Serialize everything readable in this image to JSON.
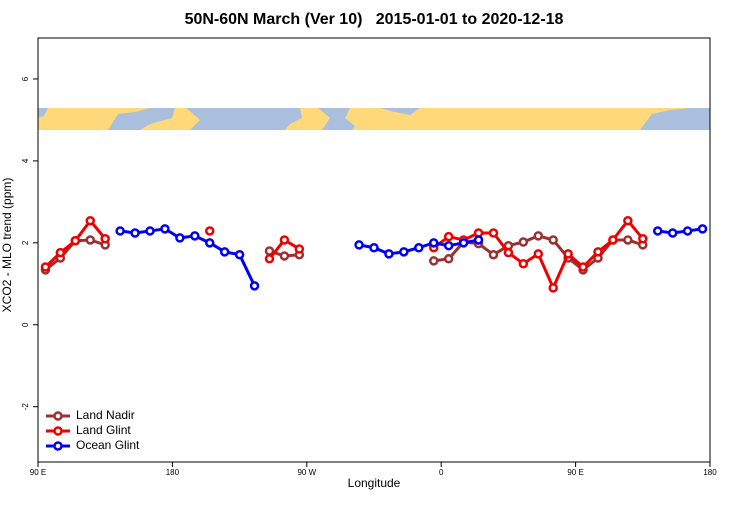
{
  "chart_data": {
    "type": "line",
    "title": "50N-60N March (Ver 10)   2015-01-01 to 2020-12-18",
    "x_label": "Longitude",
    "y_label": "XCO2 - MLO trend (ppm)",
    "xlim": [
      90,
      540
    ],
    "ylim": [
      -3.35,
      7.0
    ],
    "xticks": [
      {
        "value": 90,
        "label": "90 E"
      },
      180,
      {
        "value": 270,
        "label": "90 W"
      },
      {
        "value": 360,
        "label": "0"
      },
      {
        "value": 450,
        "label": "90 E"
      },
      {
        "value": 540,
        "label": "180"
      }
    ],
    "yticks": [
      -2,
      0,
      2,
      4,
      6
    ],
    "legend": "bottom-left",
    "x": [
      95,
      105,
      115,
      125,
      135,
      145,
      155,
      165,
      175,
      185,
      195,
      205,
      215,
      225,
      235,
      245,
      255,
      265,
      275,
      285,
      295,
      305,
      315,
      325,
      335,
      345,
      355,
      365,
      375,
      385,
      395,
      405,
      415,
      425,
      435,
      445,
      455,
      465,
      475,
      485,
      495,
      505,
      515,
      525,
      535
    ],
    "series": [
      {
        "name": "Land Nadir",
        "color": "#9b3030",
        "values": [
          1.34,
          1.63,
          2.05,
          2.07,
          1.95,
          null,
          null,
          null,
          null,
          null,
          null,
          null,
          null,
          null,
          null,
          1.8,
          1.68,
          1.71,
          null,
          null,
          null,
          null,
          null,
          null,
          null,
          null,
          1.56,
          1.61,
          2.02,
          1.98,
          1.71,
          1.93,
          2.02,
          2.17,
          2.07,
          1.63,
          1.34,
          1.63,
          2.07,
          2.07,
          1.95,
          null,
          null,
          null,
          null
        ]
      },
      {
        "name": "Land Glint",
        "color": "#ee0000",
        "values": [
          1.41,
          1.76,
          2.05,
          2.54,
          2.1,
          null,
          null,
          null,
          null,
          null,
          null,
          2.29,
          null,
          null,
          null,
          1.61,
          2.07,
          1.85,
          null,
          null,
          null,
          null,
          null,
          null,
          null,
          null,
          1.88,
          2.15,
          2.07,
          2.24,
          2.24,
          1.76,
          1.49,
          1.73,
          0.9,
          1.73,
          1.41,
          1.78,
          2.07,
          2.54,
          2.1,
          null,
          null,
          null,
          null
        ]
      },
      {
        "name": "Ocean Glint",
        "color": "#0000ee",
        "values": [
          null,
          null,
          null,
          null,
          null,
          2.29,
          2.24,
          2.29,
          2.34,
          2.12,
          2.17,
          2.0,
          1.78,
          1.71,
          0.95,
          null,
          null,
          null,
          null,
          null,
          null,
          1.95,
          1.88,
          1.73,
          1.78,
          1.88,
          2.0,
          1.93,
          2.0,
          2.07,
          null,
          null,
          null,
          null,
          null,
          null,
          null,
          null,
          null,
          null,
          null,
          2.29,
          2.24,
          2.29,
          2.34
        ]
      }
    ]
  }
}
